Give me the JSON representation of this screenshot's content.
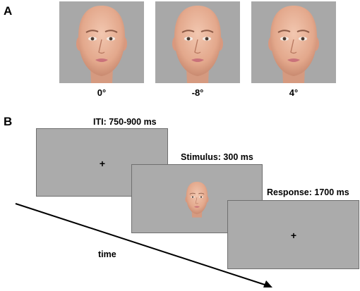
{
  "panel_a": {
    "label": "A",
    "faces": [
      {
        "caption": "0°",
        "icon": "face-icon"
      },
      {
        "caption": "-8°",
        "icon": "face-icon"
      },
      {
        "caption": "4°",
        "icon": "face-icon"
      }
    ]
  },
  "panel_b": {
    "label": "B",
    "screens": [
      {
        "label": "ITI: 750-900 ms",
        "content": "+"
      },
      {
        "label": "Stimulus: 300 ms",
        "content": "face-icon"
      },
      {
        "label": "Response: 1700 ms",
        "content": "+"
      }
    ],
    "time_label": "time"
  },
  "colors": {
    "background": "#ffffff",
    "screen_gray": "#ababab",
    "skin": "#e9b49a",
    "lips": "#c9727a"
  }
}
